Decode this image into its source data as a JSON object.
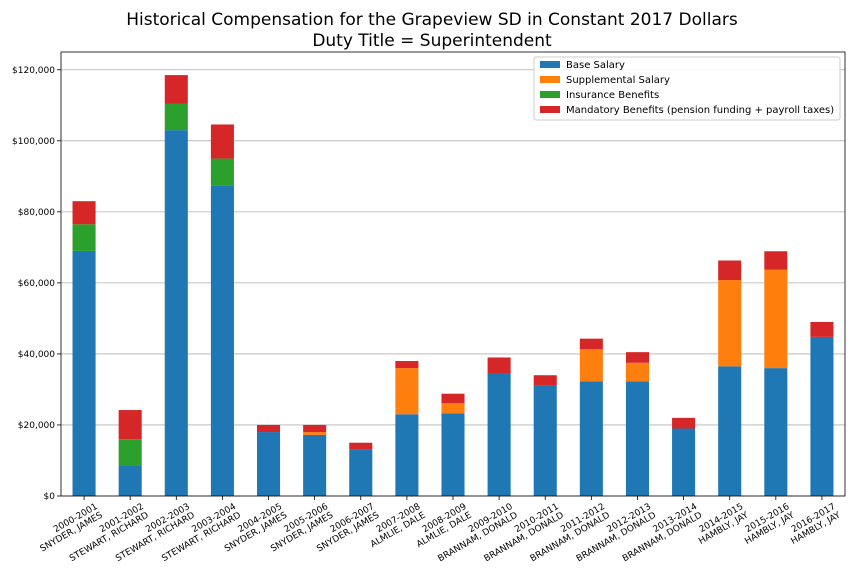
{
  "chart_data": {
    "type": "bar",
    "stacked": true,
    "title": "Historical Compensation for the Grapeview SD in Constant 2017 Dollars",
    "subtitle": "Duty Title = Superintendent",
    "xlabel": "",
    "ylabel": "",
    "ylim": [
      0,
      125000
    ],
    "yticks": [
      "$0",
      "$20,000",
      "$40,000",
      "$60,000",
      "$80,000",
      "$100,000",
      "$120,000"
    ],
    "grid": "y",
    "legend_position": "top-right",
    "categories": [
      [
        "2000-2001",
        "SNYDER, JAMES"
      ],
      [
        "2001-2002",
        "STEWART, RICHARD"
      ],
      [
        "2002-2003",
        "STEWART, RICHARD"
      ],
      [
        "2003-2004",
        "STEWART, RICHARD"
      ],
      [
        "2004-2005",
        "SNYDER, JAMES"
      ],
      [
        "2005-2006",
        "SNYDER, JAMES"
      ],
      [
        "2006-2007",
        "SNYDER, JAMES"
      ],
      [
        "2007-2008",
        "ALMLIE, DALE"
      ],
      [
        "2008-2009",
        "ALMLIE, DALE"
      ],
      [
        "2009-2010",
        "BRANNAM, DONALD"
      ],
      [
        "2010-2011",
        "BRANNAM, DONALD"
      ],
      [
        "2011-2012",
        "BRANNAM, DONALD"
      ],
      [
        "2012-2013",
        "BRANNAM, DONALD"
      ],
      [
        "2013-2014",
        "BRANNAM, DONALD"
      ],
      [
        "2014-2015",
        "HAMBLY, JAY"
      ],
      [
        "2015-2016",
        "HAMBLY, JAY"
      ],
      [
        "2016-2017",
        "HAMBLY, JAY"
      ]
    ],
    "series": [
      {
        "name": "Base Salary",
        "color": "#1f77b4",
        "values": [
          69000,
          8700,
          103000,
          87500,
          18000,
          17200,
          13000,
          23000,
          23300,
          34500,
          31000,
          32300,
          32300,
          19000,
          36500,
          36000,
          44800
        ]
      },
      {
        "name": "Supplemental Salary",
        "color": "#ff7f0e",
        "values": [
          0,
          0,
          0,
          0,
          0,
          800,
          0,
          13000,
          2800,
          0,
          0,
          9000,
          5200,
          0,
          24300,
          27700,
          0
        ]
      },
      {
        "name": "Insurance Benefits",
        "color": "#2ca02c",
        "values": [
          7500,
          7300,
          7500,
          7500,
          0,
          0,
          0,
          0,
          0,
          0,
          0,
          0,
          0,
          0,
          0,
          0,
          0
        ]
      },
      {
        "name": "Mandatory Benefits (pension funding + payroll taxes)",
        "color": "#d62728",
        "values": [
          6500,
          8200,
          8000,
          9600,
          2000,
          2000,
          2000,
          2000,
          2700,
          4500,
          3000,
          3000,
          3000,
          3000,
          5500,
          5200,
          4200
        ]
      }
    ]
  }
}
